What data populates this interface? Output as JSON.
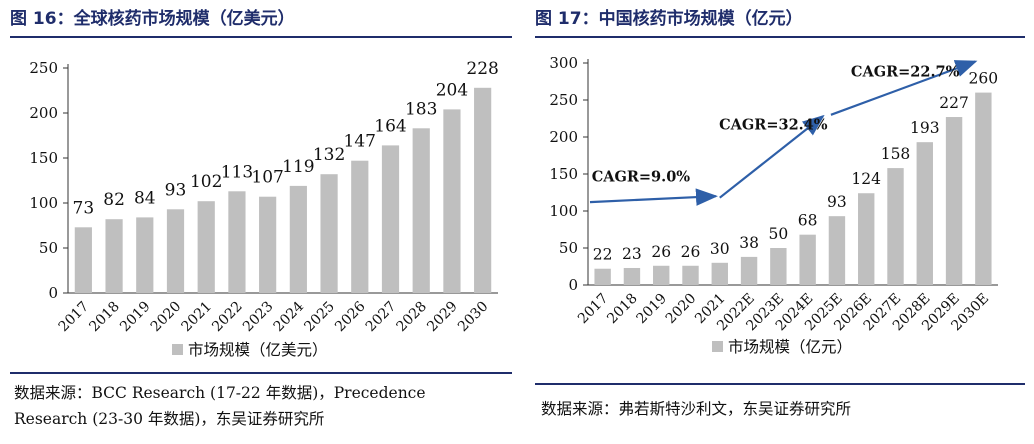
{
  "left_panel": {
    "title": "图 16：全球核药市场规模（亿美元）",
    "source_lines": [
      "数据来源：BCC Research (17-22 年数据)，Precedence",
      "Research (23-30 年数据)，东吴证券研究所"
    ]
  },
  "right_panel": {
    "title": "图 17：中国核药市场规模（亿元）",
    "source_lines": [
      "数据来源：弗若斯特沙利文，东吴证券研究所"
    ]
  },
  "colors": {
    "title": "#1f2d6b",
    "bar": "#bfbfbf",
    "arrow": "#2e5fa8",
    "cagr_text": "#1f3a8a"
  },
  "chart_data": [
    {
      "type": "bar",
      "categories": [
        "2017",
        "2018",
        "2019",
        "2020",
        "2021",
        "2022",
        "2023",
        "2024",
        "2025",
        "2026",
        "2027",
        "2028",
        "2029",
        "2030"
      ],
      "series": [
        {
          "name": "市场规模（亿美元）",
          "values": [
            73,
            82,
            84,
            93,
            102,
            113,
            107,
            119,
            132,
            147,
            164,
            183,
            204,
            228
          ]
        }
      ],
      "yticks": [
        0,
        50,
        100,
        150,
        200,
        250
      ],
      "ylim": [
        0,
        250
      ],
      "legend": "bottom",
      "grid": false,
      "data_labels": true
    },
    {
      "type": "bar",
      "categories": [
        "2017",
        "2018",
        "2019",
        "2020",
        "2021",
        "2022E",
        "2023E",
        "2024E",
        "2025E",
        "2026E",
        "2027E",
        "2028E",
        "2029E",
        "2030E"
      ],
      "series": [
        {
          "name": "市场规模（亿元）",
          "values": [
            22,
            23,
            26,
            26,
            30,
            38,
            50,
            68,
            93,
            124,
            158,
            193,
            227,
            260
          ]
        }
      ],
      "yticks": [
        0,
        50,
        100,
        150,
        200,
        250,
        300
      ],
      "ylim": [
        0,
        300
      ],
      "legend": "bottom",
      "grid": false,
      "data_labels": true,
      "annotations": [
        {
          "text": "CAGR=9.0%",
          "from": "2017",
          "to": "2021"
        },
        {
          "text": "CAGR=32.4%",
          "from": "2021",
          "to": "2025E"
        },
        {
          "text": "CAGR=22.7%",
          "from": "2025E",
          "to": "2030E"
        }
      ]
    }
  ]
}
